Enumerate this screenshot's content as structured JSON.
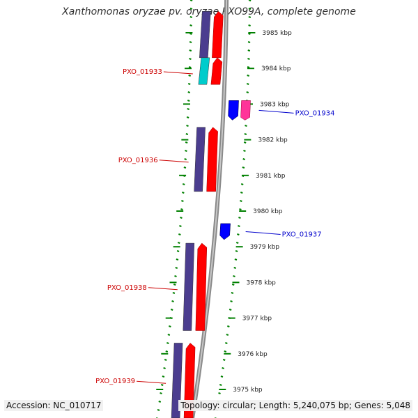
{
  "title": "Xanthomonas oryzae pv. oryzae PXO99A, complete genome",
  "footer": {
    "accession": "Accession: NC_010717",
    "topology": "Topology: circular; Length: 5,240,075 bp; Genes: 5,048"
  },
  "colors": {
    "backbone": "#8a8a8a",
    "cds_forward": "#ff0000",
    "gene_forward": "#4b3d8f",
    "cds_reverse": "#ff3399",
    "gene_reverse": "#0000ff",
    "rna_forward": "#00cccc",
    "tick": "#008000",
    "label_forward": "#cc0000",
    "label_reverse": "#0000cc"
  },
  "scale": {
    "unit": "kbp",
    "ticks": [
      {
        "pos": 3985,
        "label": "3985 kbp"
      },
      {
        "pos": 3984,
        "label": "3984 kbp"
      },
      {
        "pos": 3983,
        "label": "3983 kbp"
      },
      {
        "pos": 3982,
        "label": "3982 kbp"
      },
      {
        "pos": 3981,
        "label": "3981 kbp"
      },
      {
        "pos": 3980,
        "label": "3980 kbp"
      },
      {
        "pos": 3979,
        "label": "3979 kbp"
      },
      {
        "pos": 3978,
        "label": "3978 kbp"
      },
      {
        "pos": 3977,
        "label": "3977 kbp"
      },
      {
        "pos": 3976,
        "label": "3976 kbp"
      },
      {
        "pos": 3975,
        "label": "3975 kbp"
      }
    ]
  },
  "features": [
    {
      "label": "",
      "strand": "+",
      "start": 3984.3,
      "end": 3985.6,
      "kind": "gene"
    },
    {
      "label": "PXO_01933",
      "strand": "+",
      "start": 3983.55,
      "end": 3984.3,
      "kind": "rna"
    },
    {
      "label": "PXO_01934",
      "strand": "-",
      "start": 3982.55,
      "end": 3983.1,
      "kind": "gene"
    },
    {
      "label": "PXO_01936",
      "strand": "+",
      "start": 3980.55,
      "end": 3982.35,
      "kind": "gene"
    },
    {
      "label": "PXO_01937",
      "strand": "-",
      "start": 3979.2,
      "end": 3979.65,
      "kind": "gene"
    },
    {
      "label": "PXO_01938",
      "strand": "+",
      "start": 3976.65,
      "end": 3979.1,
      "kind": "gene"
    },
    {
      "label": "PXO_01939",
      "strand": "+",
      "start": 3974.2,
      "end": 3976.3,
      "kind": "gene"
    }
  ]
}
